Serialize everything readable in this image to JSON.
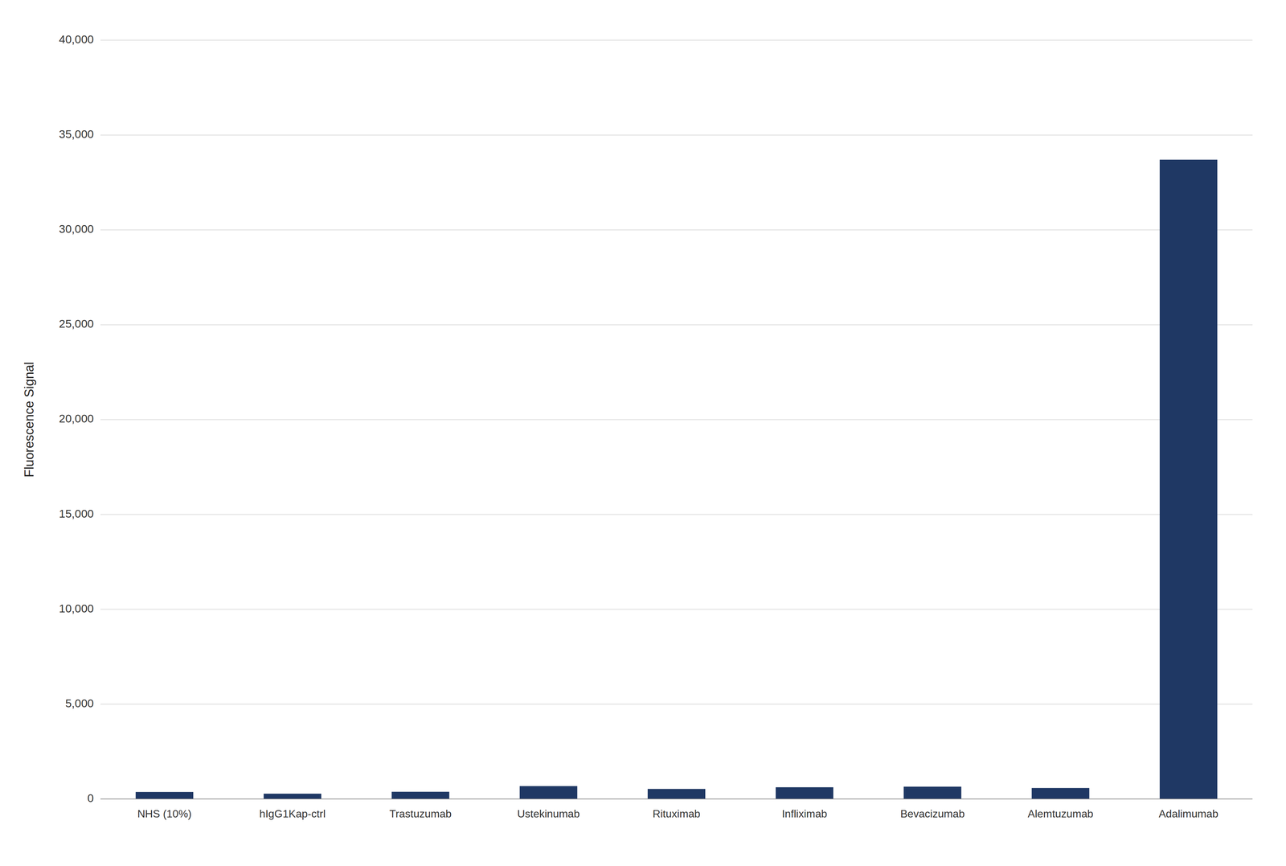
{
  "chart_data": {
    "type": "bar",
    "categories": [
      "NHS (10%)",
      "hIgG1Kap-ctrl",
      "Trastuzumab",
      "Ustekinumab",
      "Rituximab",
      "Infliximab",
      "Bevacizumab",
      "Alemtuzumab",
      "Adalimumab"
    ],
    "values": [
      370,
      280,
      380,
      680,
      530,
      620,
      650,
      580,
      33700
    ],
    "color": "#1f3864",
    "ylabel": "Fluorescence Signal",
    "ylim": [
      0,
      40000
    ],
    "yticks": [
      0,
      {
        "value": 5000,
        "label": "5,000"
      },
      {
        "value": 10000,
        "label": "10,000"
      },
      {
        "value": 15000,
        "label": "15,000"
      },
      {
        "value": 20000,
        "label": "20,000"
      },
      {
        "value": 25000,
        "label": "25,000"
      },
      {
        "value": 30000,
        "label": "30,000"
      },
      {
        "value": 35000,
        "label": "35,000"
      },
      {
        "value": 40000,
        "label": "40,000"
      }
    ],
    "grid": true
  }
}
